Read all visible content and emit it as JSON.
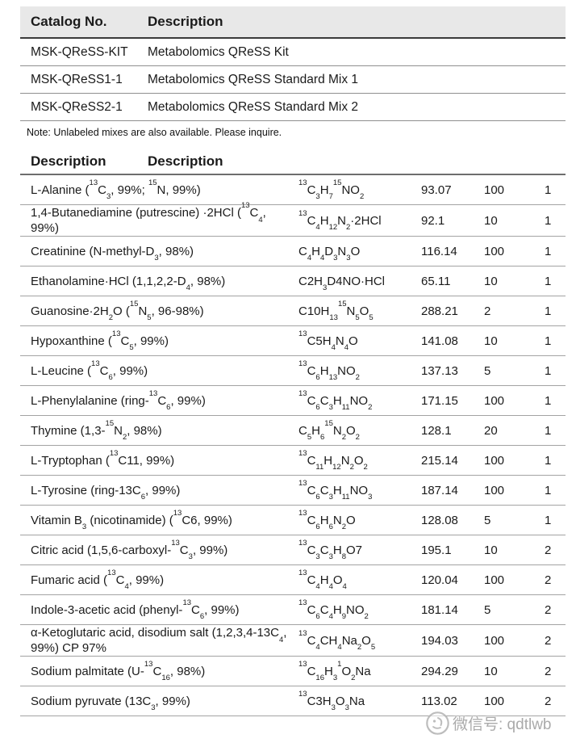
{
  "colors": {
    "header_bg": "#e8e8e8",
    "text": "#1a1a1a",
    "row_border": "#a3a3a3",
    "header_border": "#3b3b3b",
    "watermark_gray": "#a3a3a3"
  },
  "catalog_table": {
    "headers": [
      "Catalog No.",
      "Description"
    ],
    "rows": [
      {
        "catalog": "MSK-QReSS-KIT",
        "description": "Metabolomics QReSS Kit"
      },
      {
        "catalog": "MSK-QReSS1-1",
        "description": "Metabolomics QReSS Standard Mix 1"
      },
      {
        "catalog": "MSK-QReSS2-1",
        "description": "Metabolomics QReSS Standard Mix 2"
      }
    ],
    "note": "Note: Unlabeled mixes are also available. Please inquire."
  },
  "compound_table": {
    "headers": [
      "Description",
      "Description"
    ],
    "rows": [
      {
        "name": "L-Alanine (^{13}C_{3}, 99%; ^{15}N, 99%)",
        "formula": "^{13}C_{3}H_{7}^{15}NO_{2}",
        "mw": "93.07",
        "amount": "100",
        "mix": "1"
      },
      {
        "name": "1,4-Butanediamine (putrescine) ·2HCl (^{13}C_{4}, 99%)",
        "formula": "^{13}C_{4}H_{12}N_{2}·2HCl",
        "mw": "92.1",
        "amount": "10",
        "mix": "1"
      },
      {
        "name": "Creatinine (N-methyl-D_{3}, 98%)",
        "formula": "C_{4}H_{4}D_{3}N_{3}O",
        "mw": "116.14",
        "amount": "100",
        "mix": "1"
      },
      {
        "name": "Ethanolamine·HCl (1,1,2,2-D_{4}, 98%)",
        "formula": "C2H_{3}D4NO·HCl",
        "mw": "65.11",
        "amount": "10",
        "mix": "1"
      },
      {
        "name": "Guanosine·2H_{2}O (^{15}N_{5}, 96-98%)",
        "formula": "C10H_{13}^{15}N_{5}O_{5}",
        "mw": "288.21",
        "amount": "2",
        "mix": "1"
      },
      {
        "name": "Hypoxanthine (^{13}C_{5}, 99%)",
        "formula": "^{13}C5H_{4}N_{4}O",
        "mw": "141.08",
        "amount": "10",
        "mix": "1"
      },
      {
        "name": "L-Leucine (^{13}C_{6}, 99%)",
        "formula": "^{13}C_{6}H_{13}NO_{2}",
        "mw": "137.13",
        "amount": "5",
        "mix": "1"
      },
      {
        "name": "L-Phenylalanine (ring-^{13}C_{6}, 99%)",
        "formula": "^{13}C_{6}C_{3}H_{11}NO_{2}",
        "mw": "171.15",
        "amount": "100",
        "mix": "1"
      },
      {
        "name": "Thymine (1,3-^{15}N_{2}, 98%)",
        "formula": "C_{5}H_{6}^{15}N_{2}O_{2}",
        "mw": "128.1",
        "amount": "20",
        "mix": "1"
      },
      {
        "name": "L-Tryptophan (^{13}C11, 99%)",
        "formula": "^{13}C_{11}H_{12}N_{2}O_{2}",
        "mw": "215.14",
        "amount": "100",
        "mix": "1"
      },
      {
        "name": "L-Tyrosine (ring-13C_{6}, 99%)",
        "formula": "^{13}C_{6}C_{3}H_{11}NO_{3}",
        "mw": "187.14",
        "amount": "100",
        "mix": "1"
      },
      {
        "name": "Vitamin B_{3} (nicotinamide) (^{13}C6, 99%)",
        "formula": "^{13}C_{6}H_{6}N_{2}O",
        "mw": "128.08",
        "amount": "5",
        "mix": "1"
      },
      {
        "name": "Citric acid (1,5,6-carboxyl-^{13}C_{3}, 99%)",
        "formula": "^{13}C_{3}C_{3}H_{8}O7",
        "mw": "195.1",
        "amount": "10",
        "mix": "2"
      },
      {
        "name": "Fumaric acid (^{13}C_{4}, 99%)",
        "formula": "^{13}C_{4}H_{4}O_{4}",
        "mw": "120.04",
        "amount": "100",
        "mix": "2"
      },
      {
        "name": "Indole-3-acetic acid (phenyl-^{13}C_{6}, 99%)",
        "formula": "^{13}C_{6}C_{4}H_{9}NO_{2}",
        "mw": "181.14",
        "amount": "5",
        "mix": "2"
      },
      {
        "name": "α-Ketoglutaric acid, disodium salt (1,2,3,4-13C_{4}, 99%) CP 97%",
        "formula": "^{13}C_{4}CH_{4}Na_{2}O_{5}",
        "mw": "194.03",
        "amount": "100",
        "mix": "2"
      },
      {
        "name": "Sodium palmitate (U-^{13}C_{16}, 98%)",
        "formula": "^{13}C_{16}H_{3}^{1}O_{2}Na",
        "mw": "294.29",
        "amount": "10",
        "mix": "2"
      },
      {
        "name": "Sodium pyruvate (13C_{3}, 99%)",
        "formula": "^{13}C3H_{3}O_{3}Na",
        "mw": "113.02",
        "amount": "100",
        "mix": "2"
      }
    ]
  },
  "watermark": {
    "icon": "wechat-mascot-icon",
    "text": "微信号: qdtlwb"
  }
}
